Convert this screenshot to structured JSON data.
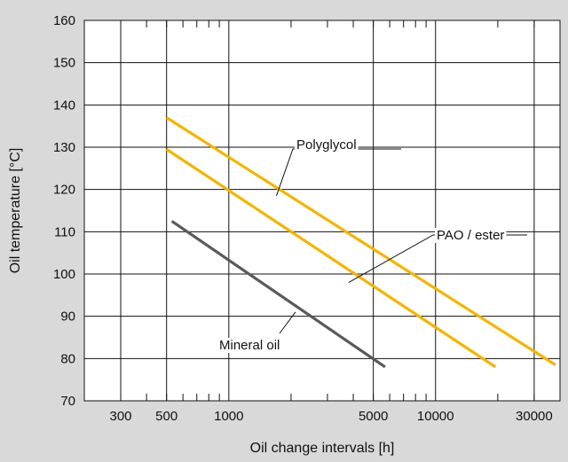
{
  "chart_data": {
    "type": "line",
    "xscale": "log",
    "xlabel": "Oil change intervals [h]",
    "ylabel": "Oil temperature  [°C]",
    "xlim": [
      200,
      40000
    ],
    "ylim": [
      70,
      160
    ],
    "xticks": [
      300,
      500,
      1000,
      5000,
      10000,
      30000
    ],
    "xtick_labels": [
      "300",
      "500",
      "1000",
      "5000",
      "10000",
      "30000"
    ],
    "yticks": [
      70,
      80,
      90,
      100,
      110,
      120,
      130,
      140,
      150,
      160
    ],
    "grid": true,
    "series": [
      {
        "name": "Polyglycol",
        "color": "#f5b400",
        "x": [
          500,
          38000
        ],
        "y": [
          137,
          78.5
        ]
      },
      {
        "name": "PAO / ester",
        "color": "#f5b400",
        "x": [
          500,
          19500
        ],
        "y": [
          129.5,
          78
        ]
      },
      {
        "name": "Mineral oil",
        "color": "#5a5a5a",
        "x": [
          530,
          5700
        ],
        "y": [
          112.5,
          78
        ]
      }
    ],
    "annotations": [
      {
        "text": "Polyglycol",
        "series": 0,
        "x": 1700,
        "y": 118.5
      },
      {
        "text": "PAO / ester",
        "series": 1,
        "x": 3800,
        "y": 98
      },
      {
        "text": "Mineral oil",
        "series": 2,
        "x": 2100,
        "y": 91
      }
    ]
  }
}
